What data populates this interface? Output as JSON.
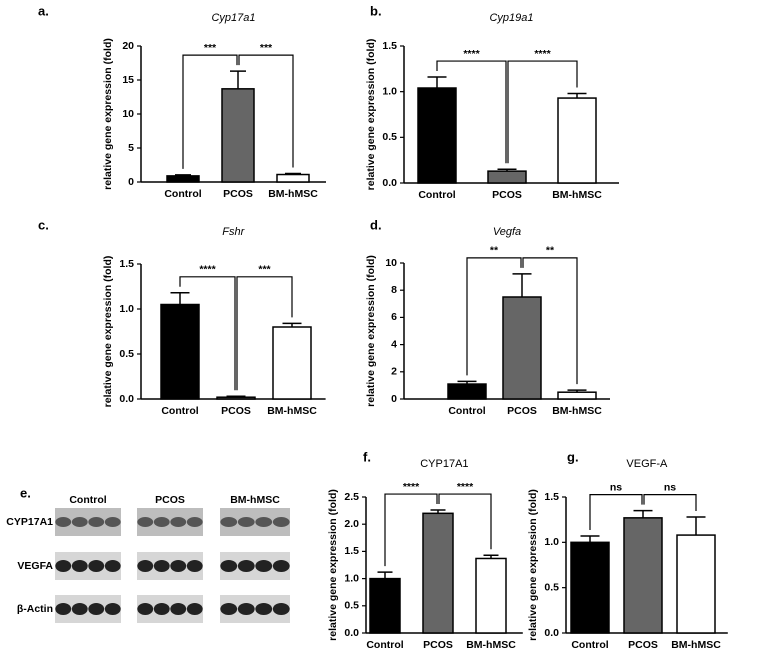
{
  "chart_data": [
    {
      "type": "bar",
      "label": "a.",
      "title": "Cyp17a1",
      "ylabel": "relative gene expression (fold)",
      "categories": [
        "Control",
        "PCOS",
        "BM-hMSC"
      ],
      "values": [
        0.9,
        13.7,
        1.1
      ],
      "errors": [
        0.15,
        2.6,
        0.15
      ],
      "colors": [
        "#000000",
        "#666666",
        "#ffffff"
      ],
      "significance": [
        "***",
        "***"
      ],
      "ylim": [
        0,
        20
      ],
      "yticks": [
        0,
        5,
        10,
        15,
        20
      ]
    },
    {
      "type": "bar",
      "label": "b.",
      "title": "Cyp19a1",
      "ylabel": "relative gene expression (fold)",
      "categories": [
        "Control",
        "PCOS",
        "BM-hMSC"
      ],
      "values": [
        1.04,
        0.13,
        0.93
      ],
      "errors": [
        0.12,
        0.02,
        0.05
      ],
      "colors": [
        "#000000",
        "#666666",
        "#ffffff"
      ],
      "significance": [
        "****",
        "****"
      ],
      "ylim": [
        0,
        1.5
      ],
      "yticks": [
        {
          "value": 0,
          "label": "0.0"
        },
        0.5,
        {
          "value": 1,
          "label": "1.0"
        },
        1.5
      ]
    },
    {
      "type": "bar",
      "label": "c.",
      "title": "Fshr",
      "ylabel": "relative gene expression (fold)",
      "categories": [
        "Control",
        "PCOS",
        "BM-hMSC"
      ],
      "values": [
        1.05,
        0.02,
        0.8
      ],
      "errors": [
        0.13,
        0.01,
        0.04
      ],
      "colors": [
        "#000000",
        "#666666",
        "#ffffff"
      ],
      "significance": [
        "****",
        "***"
      ],
      "ylim": [
        0,
        1.5
      ],
      "yticks": [
        {
          "value": 0,
          "label": "0.0"
        },
        0.5,
        {
          "value": 1,
          "label": "1.0"
        },
        1.5
      ]
    },
    {
      "type": "bar",
      "label": "d.",
      "title": "Vegfa",
      "ylabel": "relative gene expression (fold)",
      "categories": [
        "Control",
        "PCOS",
        "BM-hMSC"
      ],
      "values": [
        1.1,
        7.5,
        0.5
      ],
      "errors": [
        0.2,
        1.7,
        0.15
      ],
      "colors": [
        "#000000",
        "#666666",
        "#ffffff"
      ],
      "significance": [
        "**",
        "**"
      ],
      "ylim": [
        0,
        10
      ],
      "yticks": [
        0,
        2,
        4,
        6,
        8,
        10
      ]
    },
    {
      "type": "bar",
      "label": "f.",
      "title": "CYP17A1",
      "ylabel": "relative gene expression (fold)",
      "categories": [
        "Control",
        "PCOS",
        "BM-hMSC"
      ],
      "values": [
        1.0,
        2.2,
        1.37
      ],
      "errors": [
        0.12,
        0.06,
        0.06
      ],
      "colors": [
        "#000000",
        "#666666",
        "#ffffff"
      ],
      "significance": [
        "****",
        "****"
      ],
      "ylim": [
        0,
        2.5
      ],
      "yticks": [
        {
          "value": 0,
          "label": "0.0"
        },
        0.5,
        {
          "value": 1,
          "label": "1.0"
        },
        1.5,
        {
          "value": 2,
          "label": "2.0"
        },
        2.5
      ]
    },
    {
      "type": "bar",
      "label": "g.",
      "title": "VEGF-A",
      "ylabel": "relative gene expression (fold)",
      "categories": [
        "Control",
        "PCOS",
        "BM-hMSC"
      ],
      "values": [
        1.0,
        1.27,
        1.08
      ],
      "errors": [
        0.07,
        0.08,
        0.2
      ],
      "colors": [
        "#000000",
        "#666666",
        "#ffffff"
      ],
      "significance": [
        "ns",
        "ns"
      ],
      "ylim": [
        0,
        1.5
      ],
      "yticks": [
        {
          "value": 0,
          "label": "0.0"
        },
        0.5,
        {
          "value": 1,
          "label": "1.0"
        },
        1.5
      ]
    }
  ],
  "blot": {
    "label": "e.",
    "columns": [
      "Control",
      "PCOS",
      "BM-hMSC"
    ],
    "rows": [
      "CYP17A1",
      "VEGFA",
      "β-Actin"
    ]
  }
}
